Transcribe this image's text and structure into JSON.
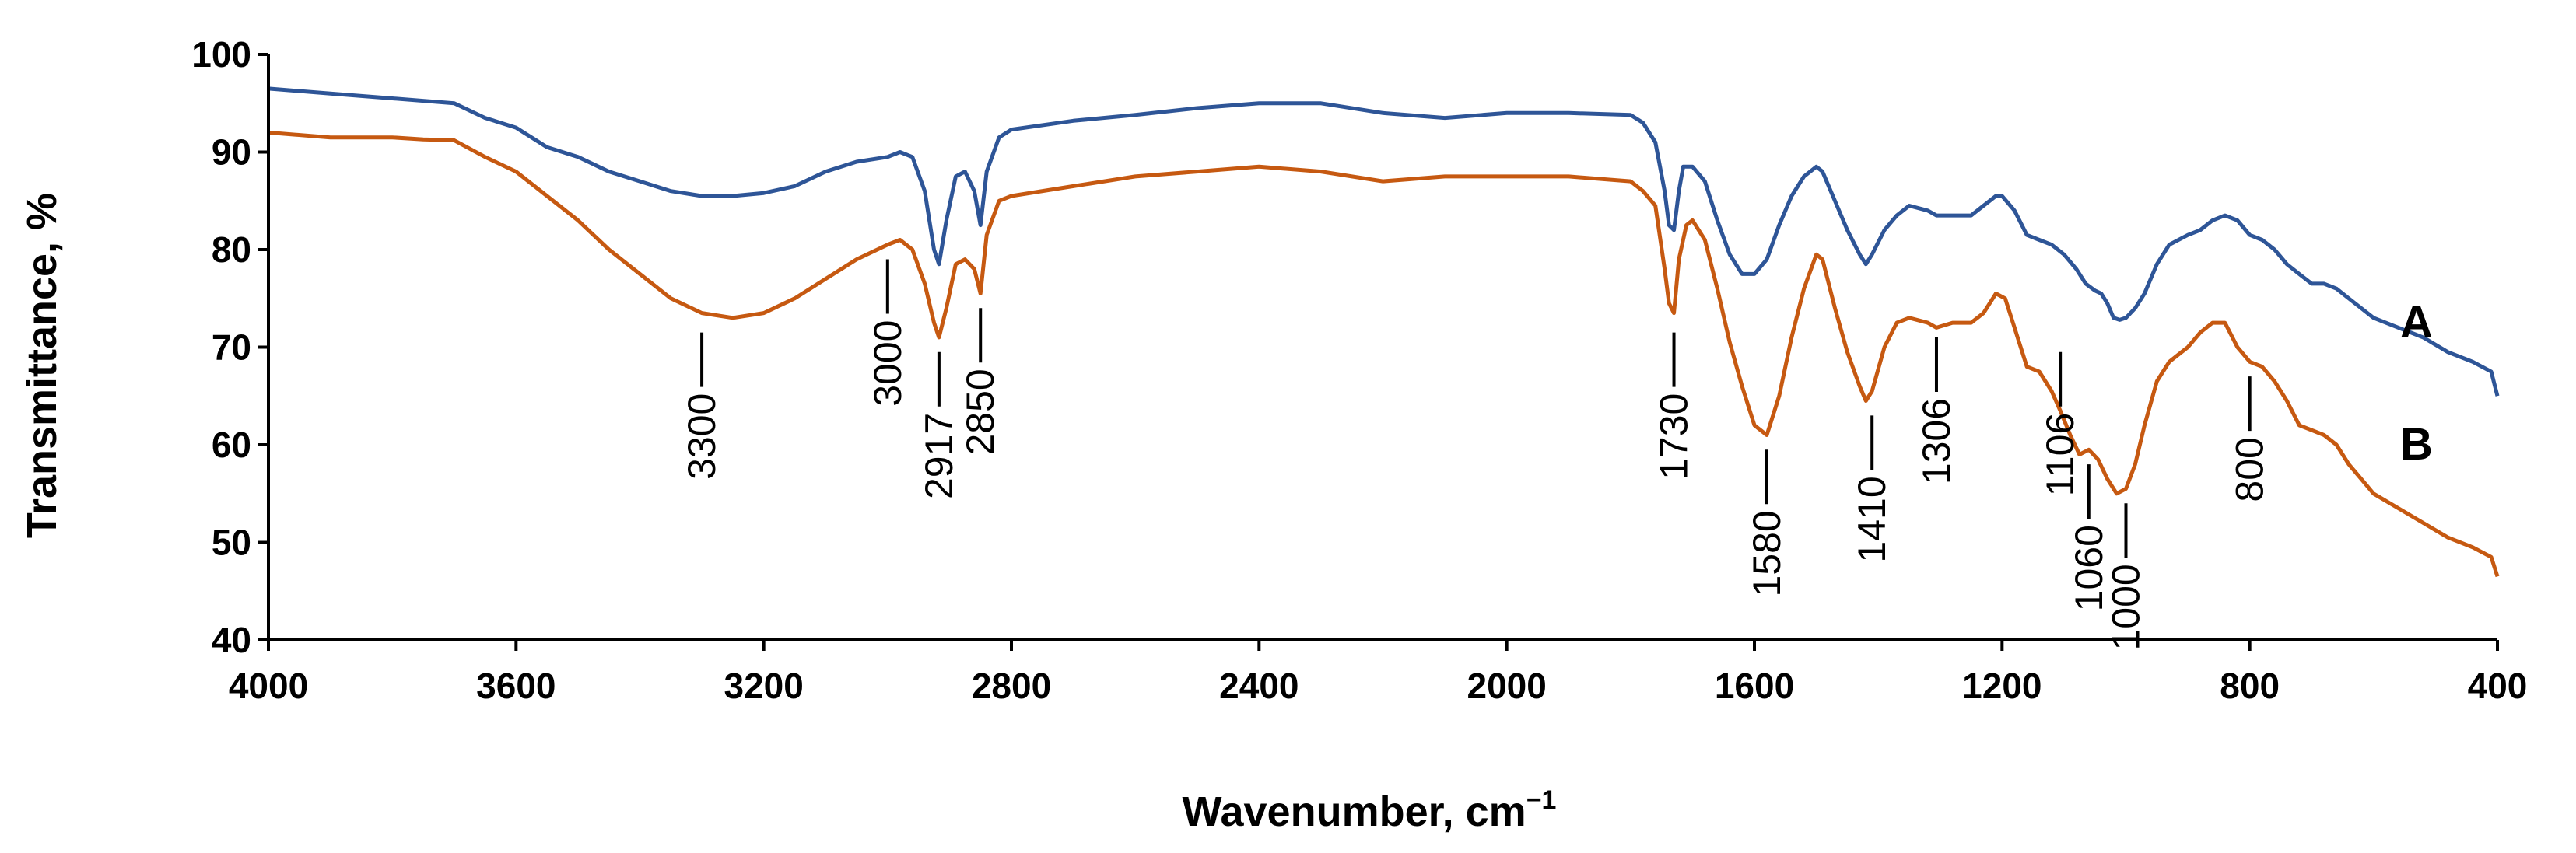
{
  "chart_data": {
    "type": "line",
    "title": "",
    "xlabel": "Wavenumber, cm",
    "xlabel_sup": "−1",
    "ylabel": "Transmittance, %",
    "xlim": [
      4000,
      400
    ],
    "ylim": [
      40,
      100
    ],
    "x_reversed": true,
    "x_ticks": [
      4000,
      3600,
      3200,
      2800,
      2400,
      2000,
      1600,
      1200,
      800,
      400
    ],
    "y_ticks": [
      40,
      50,
      60,
      70,
      80,
      90,
      100
    ],
    "grid": false,
    "series": [
      {
        "name": "A",
        "color": "#2e5597",
        "points": [
          [
            4000,
            96.5
          ],
          [
            3900,
            96.0
          ],
          [
            3800,
            95.5
          ],
          [
            3700,
            95.0
          ],
          [
            3650,
            93.5
          ],
          [
            3600,
            92.5
          ],
          [
            3550,
            90.5
          ],
          [
            3500,
            89.5
          ],
          [
            3450,
            88.0
          ],
          [
            3400,
            87.0
          ],
          [
            3350,
            86.0
          ],
          [
            3300,
            85.5
          ],
          [
            3250,
            85.5
          ],
          [
            3200,
            85.8
          ],
          [
            3150,
            86.5
          ],
          [
            3100,
            88.0
          ],
          [
            3050,
            89.0
          ],
          [
            3000,
            89.5
          ],
          [
            2980,
            90.0
          ],
          [
            2960,
            89.5
          ],
          [
            2940,
            86.0
          ],
          [
            2925,
            80.0
          ],
          [
            2917,
            78.5
          ],
          [
            2905,
            83.0
          ],
          [
            2890,
            87.5
          ],
          [
            2875,
            88.0
          ],
          [
            2860,
            86.0
          ],
          [
            2850,
            82.5
          ],
          [
            2840,
            88.0
          ],
          [
            2820,
            91.5
          ],
          [
            2800,
            92.3
          ],
          [
            2700,
            93.2
          ],
          [
            2600,
            93.8
          ],
          [
            2500,
            94.5
          ],
          [
            2400,
            95.0
          ],
          [
            2300,
            95.0
          ],
          [
            2200,
            94.0
          ],
          [
            2100,
            93.5
          ],
          [
            2000,
            94.0
          ],
          [
            1900,
            94.0
          ],
          [
            1800,
            93.8
          ],
          [
            1780,
            93.0
          ],
          [
            1760,
            91.0
          ],
          [
            1745,
            86.0
          ],
          [
            1738,
            82.5
          ],
          [
            1730,
            82.0
          ],
          [
            1722,
            86.0
          ],
          [
            1715,
            88.5
          ],
          [
            1700,
            88.5
          ],
          [
            1680,
            87.0
          ],
          [
            1660,
            83.0
          ],
          [
            1640,
            79.5
          ],
          [
            1620,
            77.5
          ],
          [
            1600,
            77.5
          ],
          [
            1580,
            79.0
          ],
          [
            1560,
            82.5
          ],
          [
            1540,
            85.5
          ],
          [
            1520,
            87.5
          ],
          [
            1500,
            88.5
          ],
          [
            1490,
            88.0
          ],
          [
            1470,
            85.0
          ],
          [
            1450,
            82.0
          ],
          [
            1430,
            79.5
          ],
          [
            1420,
            78.5
          ],
          [
            1410,
            79.5
          ],
          [
            1390,
            82.0
          ],
          [
            1370,
            83.5
          ],
          [
            1350,
            84.5
          ],
          [
            1320,
            84.0
          ],
          [
            1306,
            83.5
          ],
          [
            1280,
            83.5
          ],
          [
            1250,
            83.5
          ],
          [
            1230,
            84.5
          ],
          [
            1210,
            85.5
          ],
          [
            1200,
            85.5
          ],
          [
            1180,
            84.0
          ],
          [
            1160,
            81.5
          ],
          [
            1140,
            81.0
          ],
          [
            1120,
            80.5
          ],
          [
            1100,
            79.5
          ],
          [
            1080,
            78.0
          ],
          [
            1065,
            76.5
          ],
          [
            1050,
            75.8
          ],
          [
            1040,
            75.5
          ],
          [
            1030,
            74.5
          ],
          [
            1020,
            73.0
          ],
          [
            1010,
            72.8
          ],
          [
            1000,
            73.0
          ],
          [
            985,
            74.0
          ],
          [
            970,
            75.5
          ],
          [
            950,
            78.5
          ],
          [
            930,
            80.5
          ],
          [
            900,
            81.5
          ],
          [
            880,
            82.0
          ],
          [
            860,
            83.0
          ],
          [
            840,
            83.5
          ],
          [
            820,
            83.0
          ],
          [
            800,
            81.5
          ],
          [
            780,
            81.0
          ],
          [
            760,
            80.0
          ],
          [
            740,
            78.5
          ],
          [
            720,
            77.5
          ],
          [
            700,
            76.5
          ],
          [
            680,
            76.5
          ],
          [
            660,
            76.0
          ],
          [
            640,
            75.0
          ],
          [
            620,
            74.0
          ],
          [
            600,
            73.0
          ],
          [
            560,
            72.0
          ],
          [
            520,
            71.0
          ],
          [
            480,
            69.5
          ],
          [
            440,
            68.5
          ],
          [
            410,
            67.5
          ],
          [
            400,
            65.0
          ]
        ]
      },
      {
        "name": "B",
        "color": "#c65911",
        "points": [
          [
            4000,
            92.0
          ],
          [
            3900,
            91.5
          ],
          [
            3800,
            91.5
          ],
          [
            3750,
            91.3
          ],
          [
            3700,
            91.2
          ],
          [
            3650,
            89.5
          ],
          [
            3600,
            88.0
          ],
          [
            3550,
            85.5
          ],
          [
            3500,
            83.0
          ],
          [
            3450,
            80.0
          ],
          [
            3400,
            77.5
          ],
          [
            3350,
            75.0
          ],
          [
            3300,
            73.5
          ],
          [
            3250,
            73.0
          ],
          [
            3200,
            73.5
          ],
          [
            3150,
            75.0
          ],
          [
            3100,
            77.0
          ],
          [
            3050,
            79.0
          ],
          [
            3000,
            80.5
          ],
          [
            2980,
            81.0
          ],
          [
            2960,
            80.0
          ],
          [
            2940,
            76.5
          ],
          [
            2925,
            72.5
          ],
          [
            2917,
            71.0
          ],
          [
            2905,
            74.0
          ],
          [
            2890,
            78.5
          ],
          [
            2875,
            79.0
          ],
          [
            2860,
            78.0
          ],
          [
            2850,
            75.5
          ],
          [
            2840,
            81.5
          ],
          [
            2820,
            85.0
          ],
          [
            2800,
            85.5
          ],
          [
            2700,
            86.5
          ],
          [
            2600,
            87.5
          ],
          [
            2500,
            88.0
          ],
          [
            2400,
            88.5
          ],
          [
            2300,
            88.0
          ],
          [
            2200,
            87.0
          ],
          [
            2100,
            87.5
          ],
          [
            2000,
            87.5
          ],
          [
            1900,
            87.5
          ],
          [
            1800,
            87.0
          ],
          [
            1780,
            86.0
          ],
          [
            1760,
            84.5
          ],
          [
            1745,
            78.0
          ],
          [
            1738,
            74.5
          ],
          [
            1730,
            73.5
          ],
          [
            1722,
            79.0
          ],
          [
            1710,
            82.5
          ],
          [
            1700,
            83.0
          ],
          [
            1680,
            81.0
          ],
          [
            1660,
            76.0
          ],
          [
            1640,
            70.5
          ],
          [
            1620,
            66.0
          ],
          [
            1600,
            62.0
          ],
          [
            1580,
            61.0
          ],
          [
            1560,
            65.0
          ],
          [
            1540,
            71.0
          ],
          [
            1520,
            76.0
          ],
          [
            1500,
            79.5
          ],
          [
            1490,
            79.0
          ],
          [
            1470,
            74.0
          ],
          [
            1450,
            69.5
          ],
          [
            1430,
            66.0
          ],
          [
            1420,
            64.5
          ],
          [
            1410,
            65.5
          ],
          [
            1390,
            70.0
          ],
          [
            1370,
            72.5
          ],
          [
            1350,
            73.0
          ],
          [
            1320,
            72.5
          ],
          [
            1306,
            72.0
          ],
          [
            1280,
            72.5
          ],
          [
            1250,
            72.5
          ],
          [
            1230,
            73.5
          ],
          [
            1210,
            75.5
          ],
          [
            1195,
            75.0
          ],
          [
            1180,
            72.0
          ],
          [
            1160,
            68.0
          ],
          [
            1140,
            67.5
          ],
          [
            1120,
            65.5
          ],
          [
            1106,
            63.5
          ],
          [
            1090,
            61.0
          ],
          [
            1075,
            59.0
          ],
          [
            1060,
            59.5
          ],
          [
            1045,
            58.5
          ],
          [
            1030,
            56.5
          ],
          [
            1015,
            55.0
          ],
          [
            1000,
            55.5
          ],
          [
            985,
            58.0
          ],
          [
            970,
            62.0
          ],
          [
            950,
            66.5
          ],
          [
            930,
            68.5
          ],
          [
            900,
            70.0
          ],
          [
            880,
            71.5
          ],
          [
            860,
            72.5
          ],
          [
            840,
            72.5
          ],
          [
            820,
            70.0
          ],
          [
            800,
            68.5
          ],
          [
            780,
            68.0
          ],
          [
            760,
            66.5
          ],
          [
            740,
            64.5
          ],
          [
            720,
            62.0
          ],
          [
            700,
            61.5
          ],
          [
            680,
            61.0
          ],
          [
            660,
            60.0
          ],
          [
            640,
            58.0
          ],
          [
            620,
            56.5
          ],
          [
            600,
            55.0
          ],
          [
            560,
            53.5
          ],
          [
            520,
            52.0
          ],
          [
            480,
            50.5
          ],
          [
            440,
            49.5
          ],
          [
            410,
            48.5
          ],
          [
            400,
            46.5
          ]
        ]
      }
    ],
    "annotations": [
      {
        "label": "3300",
        "x": 3300,
        "y_top": 71.5
      },
      {
        "label": "3000",
        "x": 3000,
        "y_top": 79.0
      },
      {
        "label": "2917",
        "x": 2917,
        "y_top": 69.5
      },
      {
        "label": "2850",
        "x": 2850,
        "y_top": 74.0
      },
      {
        "label": "1730",
        "x": 1730,
        "y_top": 71.5
      },
      {
        "label": "1580",
        "x": 1580,
        "y_top": 59.5
      },
      {
        "label": "1410",
        "x": 1410,
        "y_top": 63.0
      },
      {
        "label": "1306",
        "x": 1306,
        "y_top": 71.0
      },
      {
        "label": "1106",
        "x": 1106,
        "y_top": 69.5
      },
      {
        "label": "1060",
        "x": 1060,
        "y_top": 58.0
      },
      {
        "label": "1000",
        "x": 1000,
        "y_top": 54.0
      },
      {
        "label": "800",
        "x": 800,
        "y_top": 67.0
      }
    ]
  }
}
